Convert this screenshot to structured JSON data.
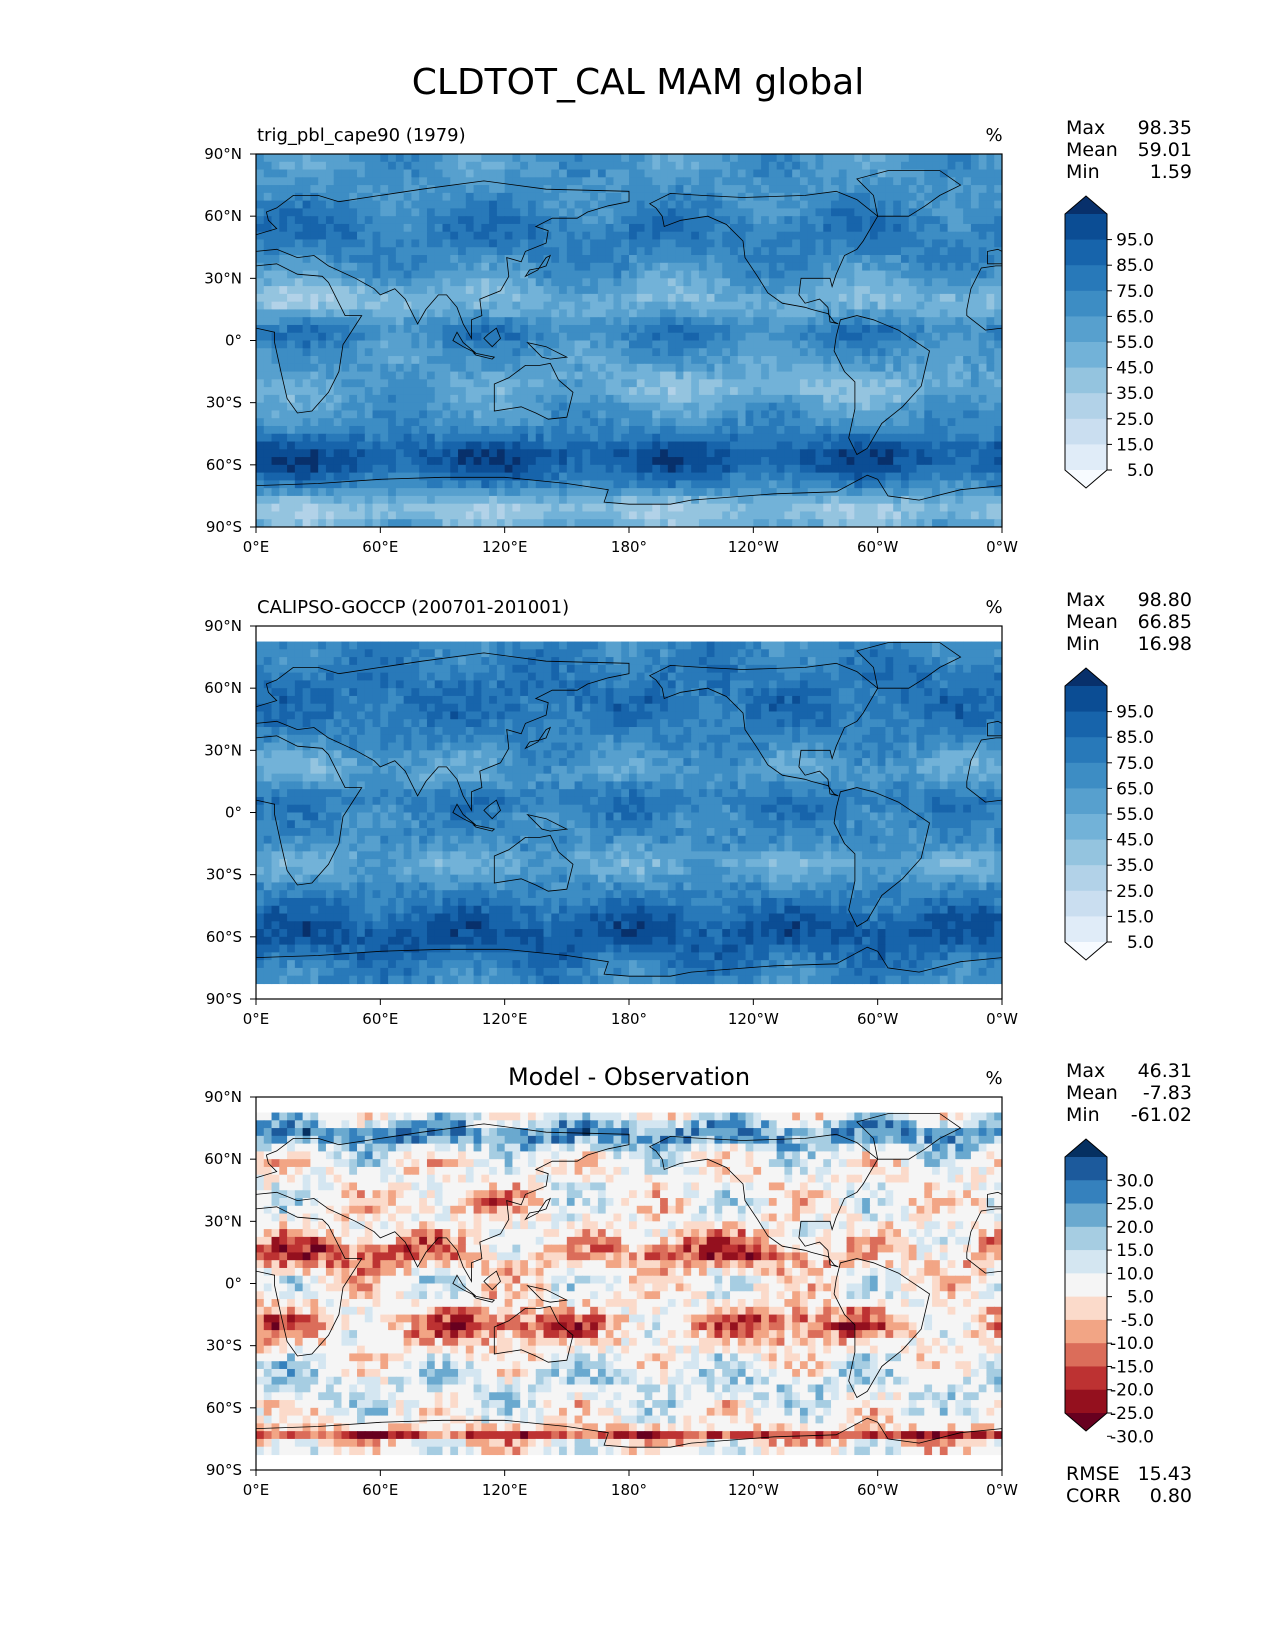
{
  "chart_data": {
    "type": "map-contour",
    "title": "CLDTOT_CAL MAM global",
    "x_ticks": [
      "0°E",
      "60°E",
      "120°E",
      "180°",
      "120°W",
      "60°W",
      "0°W"
    ],
    "y_ticks": [
      "90°N",
      "60°N",
      "30°N",
      "0°",
      "30°S",
      "60°S",
      "90°S"
    ],
    "lon_range": [
      0,
      360
    ],
    "lat_range": [
      -90,
      90
    ],
    "panels": [
      {
        "name": "model",
        "title": "trig_pbl_cape90 (1979)",
        "title_position": "left",
        "units": "%",
        "stats": [
          {
            "label": "Max",
            "value": "98.35"
          },
          {
            "label": "Mean",
            "value": "59.01"
          },
          {
            "label": "Min",
            "value": "1.59"
          }
        ],
        "colorbar": {
          "colormap": "blues",
          "ticks": [
            "95.0",
            "85.0",
            "75.0",
            "65.0",
            "55.0",
            "45.0",
            "35.0",
            "25.0",
            "15.0",
            "5.0"
          ],
          "colors": [
            "#08306b",
            "#0b4d94",
            "#1764ab",
            "#2879b9",
            "#3d8dc4",
            "#57a0ce",
            "#72b2d8",
            "#94c4df",
            "#b2d2e8",
            "#cadef0",
            "#e0ecf8",
            "#f7fbff"
          ]
        },
        "lat_coverage": [
          -90,
          90
        ]
      },
      {
        "name": "observation",
        "title": "CALIPSO-GOCCP (200701-201001)",
        "title_position": "left",
        "units": "%",
        "stats": [
          {
            "label": "Max",
            "value": "98.80"
          },
          {
            "label": "Mean",
            "value": "66.85"
          },
          {
            "label": "Min",
            "value": "16.98"
          }
        ],
        "colorbar": {
          "colormap": "blues",
          "ticks": [
            "95.0",
            "85.0",
            "75.0",
            "65.0",
            "55.0",
            "45.0",
            "35.0",
            "25.0",
            "15.0",
            "5.0"
          ],
          "colors": [
            "#08306b",
            "#0b4d94",
            "#1764ab",
            "#2879b9",
            "#3d8dc4",
            "#57a0ce",
            "#72b2d8",
            "#94c4df",
            "#b2d2e8",
            "#cadef0",
            "#e0ecf8",
            "#f7fbff"
          ]
        },
        "lat_coverage": [
          -82,
          82
        ]
      },
      {
        "name": "difference",
        "title": "Model - Observation",
        "title_position": "center",
        "units": "%",
        "stats": [
          {
            "label": "Max",
            "value": "46.31"
          },
          {
            "label": "Mean",
            "value": "-7.83"
          },
          {
            "label": "Min",
            "value": "-61.02"
          }
        ],
        "colorbar": {
          "colormap": "red-blue",
          "ticks": [
            "30.0",
            "25.0",
            "20.0",
            "15.0",
            "10.0",
            "5.0",
            "-5.0",
            "-10.0",
            "-15.0",
            "-20.0",
            "-25.0",
            "-30.0"
          ],
          "colors": [
            "#053061",
            "#1c5a9c",
            "#3581bd",
            "#6aa9cf",
            "#a6cde2",
            "#d4e6f1",
            "#f5f5f5",
            "#fbdaca",
            "#f2a585",
            "#db6d5a",
            "#bd3232",
            "#94101e",
            "#67001f"
          ]
        },
        "lat_coverage": [
          -82,
          82
        ],
        "metrics": [
          {
            "label": "RMSE",
            "value": "15.43"
          },
          {
            "label": "CORR",
            "value": "0.80"
          }
        ]
      }
    ]
  }
}
